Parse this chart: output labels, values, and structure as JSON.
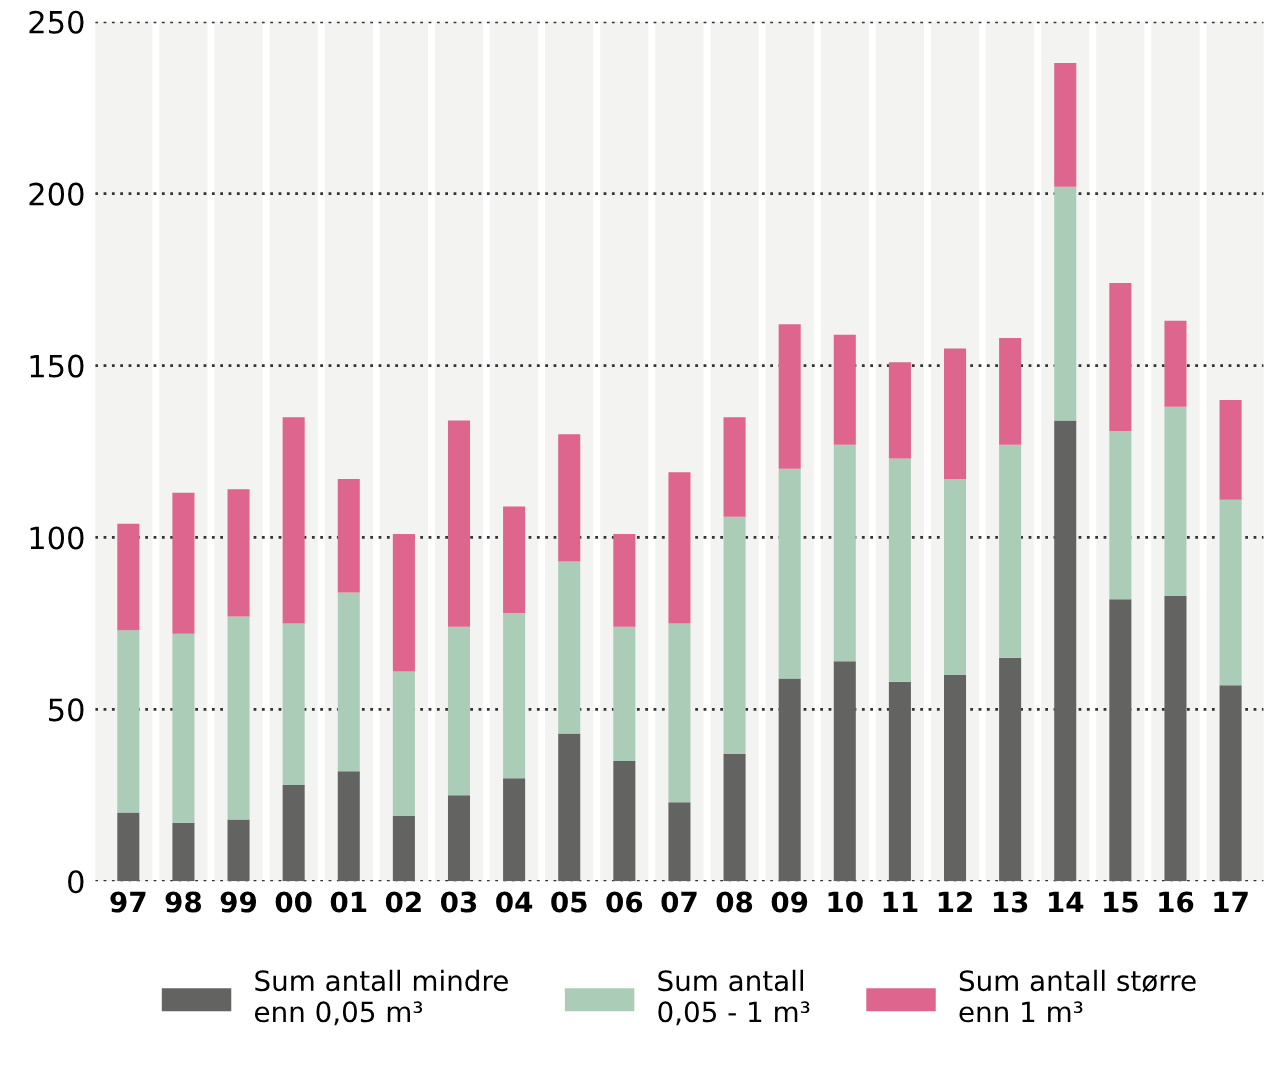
{
  "chart_data": {
    "type": "bar",
    "stacked": true,
    "categories": [
      "97",
      "98",
      "99",
      "00",
      "01",
      "02",
      "03",
      "04",
      "05",
      "06",
      "07",
      "08",
      "09",
      "10",
      "11",
      "12",
      "13",
      "14",
      "15",
      "16",
      "17"
    ],
    "series": [
      {
        "name": "Sum antall mindre\nenn 0,05 m³",
        "color": "#636361",
        "values": [
          20,
          17,
          18,
          28,
          32,
          19,
          25,
          30,
          43,
          35,
          23,
          37,
          59,
          64,
          58,
          60,
          65,
          134,
          82,
          83,
          57
        ]
      },
      {
        "name": "Sum antall\n0,05 - 1 m³",
        "color": "#abcdb7",
        "values": [
          53,
          55,
          59,
          47,
          52,
          42,
          49,
          48,
          50,
          39,
          52,
          69,
          61,
          63,
          65,
          57,
          62,
          68,
          49,
          55,
          54
        ]
      },
      {
        "name": "Sum antall større\nenn 1 m³",
        "color": "#dd658e",
        "values": [
          31,
          41,
          37,
          60,
          33,
          40,
          60,
          31,
          37,
          27,
          44,
          29,
          42,
          32,
          28,
          38,
          31,
          36,
          43,
          25,
          29
        ]
      }
    ],
    "ylim": [
      0,
      250
    ],
    "yticks": [
      0,
      50,
      100,
      150,
      200,
      250
    ],
    "grid": "y",
    "legend": "bottom"
  }
}
